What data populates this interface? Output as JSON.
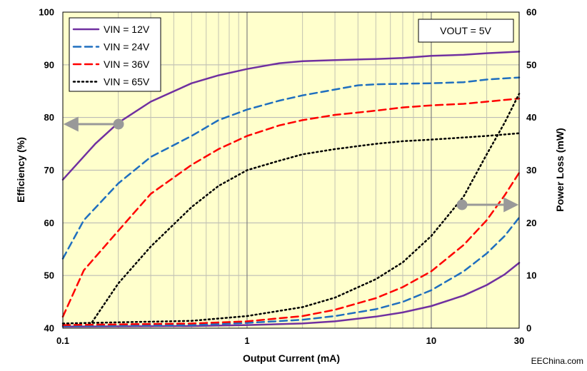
{
  "chart_data": {
    "type": "line",
    "x_label": "Output Current (mA)",
    "y_left_label": "Efficiency (%)",
    "y_right_label": "Power Loss (mW)",
    "x_scale": "log",
    "xlim": [
      0.1,
      30
    ],
    "x_ticks": [
      {
        "value": 0.1,
        "label": "0.1"
      },
      {
        "value": 1,
        "label": "1"
      },
      {
        "value": 10,
        "label": "10"
      },
      {
        "value": 30,
        "label": "30"
      }
    ],
    "y_left_lim": [
      40,
      100
    ],
    "y_left_ticks": [
      40,
      50,
      60,
      70,
      80,
      90,
      100
    ],
    "y_right_lim": [
      0,
      60
    ],
    "y_right_ticks": [
      0,
      10,
      20,
      30,
      40,
      50,
      60
    ],
    "grid": true,
    "background_color": "#ffffcc",
    "legend_position": "top-left",
    "annotation": "VOUT = 5V",
    "watermark": "EEChina.com",
    "series": [
      {
        "name": "VIN = 12V",
        "color": "#7030a0",
        "style": "solid"
      },
      {
        "name": "VIN = 24V",
        "color": "#1f6fbf",
        "style": "dashed"
      },
      {
        "name": "VIN = 36V",
        "color": "#ff0000",
        "style": "dashed"
      },
      {
        "name": "VIN = 65V",
        "color": "#000000",
        "style": "dotted"
      }
    ],
    "efficiency_curves": [
      {
        "series": 0,
        "points": [
          [
            0.1,
            68.2
          ],
          [
            0.15,
            75
          ],
          [
            0.2,
            79
          ],
          [
            0.3,
            83
          ],
          [
            0.5,
            86.5
          ],
          [
            0.7,
            88
          ],
          [
            1,
            89.2
          ],
          [
            1.5,
            90.3
          ],
          [
            2,
            90.7
          ],
          [
            3,
            90.9
          ],
          [
            5,
            91.1
          ],
          [
            7,
            91.3
          ],
          [
            10,
            91.7
          ],
          [
            15,
            91.9
          ],
          [
            20,
            92.2
          ],
          [
            30,
            92.5
          ]
        ]
      },
      {
        "series": 1,
        "points": [
          [
            0.1,
            53.2
          ],
          [
            0.13,
            60.5
          ],
          [
            0.2,
            67.5
          ],
          [
            0.3,
            72.5
          ],
          [
            0.5,
            76.5
          ],
          [
            0.7,
            79.5
          ],
          [
            1,
            81.5
          ],
          [
            1.5,
            83.2
          ],
          [
            2,
            84.2
          ],
          [
            3,
            85.3
          ],
          [
            4,
            86.1
          ],
          [
            5,
            86.3
          ],
          [
            7,
            86.4
          ],
          [
            10,
            86.5
          ],
          [
            15,
            86.7
          ],
          [
            20,
            87.2
          ],
          [
            30,
            87.6
          ]
        ]
      },
      {
        "series": 2,
        "points": [
          [
            0.1,
            42.2
          ],
          [
            0.13,
            51
          ],
          [
            0.2,
            58.5
          ],
          [
            0.3,
            65.5
          ],
          [
            0.5,
            71
          ],
          [
            0.7,
            74
          ],
          [
            1,
            76.5
          ],
          [
            1.5,
            78.5
          ],
          [
            2,
            79.5
          ],
          [
            3,
            80.5
          ],
          [
            5,
            81.3
          ],
          [
            7,
            81.9
          ],
          [
            10,
            82.3
          ],
          [
            15,
            82.6
          ],
          [
            20,
            83
          ],
          [
            30,
            83.6
          ]
        ]
      },
      {
        "series": 3,
        "points": [
          [
            0.14,
            40.5
          ],
          [
            0.2,
            48.5
          ],
          [
            0.3,
            55.5
          ],
          [
            0.5,
            63
          ],
          [
            0.7,
            67
          ],
          [
            1,
            70
          ],
          [
            1.5,
            71.8
          ],
          [
            2,
            73
          ],
          [
            3,
            74
          ],
          [
            5,
            75
          ],
          [
            7,
            75.5
          ],
          [
            10,
            75.8
          ],
          [
            15,
            76.2
          ],
          [
            20,
            76.5
          ],
          [
            30,
            77
          ]
        ]
      }
    ],
    "power_loss_curves": [
      {
        "series": 0,
        "points": [
          [
            0.1,
            0.3
          ],
          [
            0.5,
            0.4
          ],
          [
            1,
            0.6
          ],
          [
            2,
            0.9
          ],
          [
            3,
            1.3
          ],
          [
            5,
            2.2
          ],
          [
            7,
            3.0
          ],
          [
            10,
            4.2
          ],
          [
            15,
            6.2
          ],
          [
            20,
            8.2
          ],
          [
            25,
            10.2
          ],
          [
            30,
            12.4
          ]
        ]
      },
      {
        "series": 1,
        "points": [
          [
            0.1,
            0.4
          ],
          [
            0.5,
            0.6
          ],
          [
            1,
            1.0
          ],
          [
            2,
            1.6
          ],
          [
            3,
            2.3
          ],
          [
            5,
            3.6
          ],
          [
            7,
            5.0
          ],
          [
            10,
            7.2
          ],
          [
            15,
            10.8
          ],
          [
            20,
            14.2
          ],
          [
            25,
            17.5
          ],
          [
            30,
            21
          ]
        ]
      },
      {
        "series": 2,
        "points": [
          [
            0.1,
            0.6
          ],
          [
            0.5,
            0.9
          ],
          [
            1,
            1.3
          ],
          [
            2,
            2.3
          ],
          [
            3,
            3.5
          ],
          [
            5,
            5.7
          ],
          [
            7,
            7.8
          ],
          [
            10,
            10.8
          ],
          [
            15,
            15.8
          ],
          [
            20,
            20.5
          ],
          [
            25,
            25.2
          ],
          [
            30,
            29.5
          ]
        ]
      },
      {
        "series": 3,
        "points": [
          [
            0.1,
            0.9
          ],
          [
            0.5,
            1.4
          ],
          [
            1,
            2.3
          ],
          [
            2,
            4.0
          ],
          [
            3,
            5.8
          ],
          [
            5,
            9.3
          ],
          [
            7,
            12.5
          ],
          [
            10,
            17.5
          ],
          [
            15,
            25
          ],
          [
            20,
            33
          ],
          [
            25,
            39
          ],
          [
            30,
            44.5
          ]
        ]
      }
    ]
  }
}
